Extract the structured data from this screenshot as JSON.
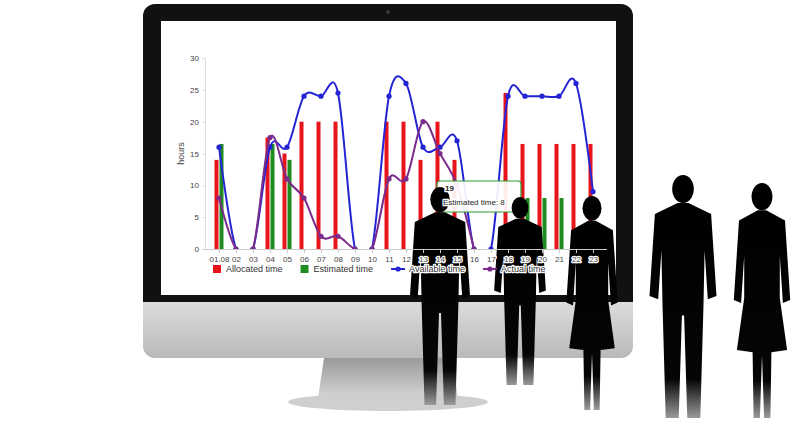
{
  "chart_data": {
    "type": "bar",
    "y_label": "hours",
    "categories": [
      "01.08",
      "02",
      "03",
      "04",
      "05",
      "06",
      "07",
      "08",
      "09",
      "10",
      "11",
      "12",
      "13",
      "14",
      "15",
      "16",
      "17",
      "18",
      "19",
      "20",
      "21",
      "22",
      "23"
    ],
    "series": [
      {
        "name": "Allocated time",
        "type": "bar",
        "color": "#e8141b",
        "values": [
          14,
          0,
          0,
          17.5,
          15,
          20,
          20,
          20,
          0,
          0,
          20,
          20,
          14,
          20,
          14,
          0,
          0,
          24.5,
          16.5,
          16.5,
          16.5,
          16.5,
          16.5
        ]
      },
      {
        "name": "Estimated time",
        "type": "bar",
        "color": "#1e8c1e",
        "values": [
          16.5,
          0,
          0,
          16.5,
          14,
          0,
          0,
          0,
          0,
          0,
          0,
          0,
          0,
          0,
          0,
          0,
          0,
          0,
          8,
          8,
          8,
          0,
          0
        ]
      },
      {
        "name": "Available time",
        "type": "line",
        "color": "#2424d4",
        "marker": "circle",
        "values": [
          16,
          0,
          0,
          16,
          16,
          24,
          24,
          24.5,
          0,
          0,
          24,
          26,
          16,
          16,
          17,
          0,
          0,
          24,
          24,
          24,
          24,
          26,
          9
        ]
      },
      {
        "name": "Actual time",
        "type": "line",
        "color": "#7b2b8c",
        "marker": "circle",
        "values": [
          8,
          0,
          0,
          17.5,
          11,
          8,
          2,
          2,
          0,
          0,
          11,
          11,
          20,
          15,
          10,
          0,
          null,
          null,
          null,
          null,
          null,
          null,
          null
        ]
      }
    ],
    "ylim": [
      0,
      30
    ],
    "yticks": [
      0,
      5,
      10,
      15,
      20,
      25,
      30
    ],
    "grid": false,
    "legend": "bottom",
    "annotations": [
      {
        "title": "19",
        "text": "Estimated time: 8"
      }
    ]
  }
}
